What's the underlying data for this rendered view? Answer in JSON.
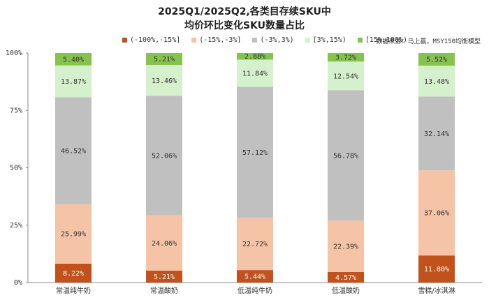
{
  "chart_data": {
    "type": "bar",
    "stacked": true,
    "title_lines": [
      "2025Q1/2025Q2,各类目存续SKU中",
      "均价环比变化SKU数量占比"
    ],
    "source": "数据来源：马上赢，MSY150均衡模型",
    "categories": [
      "常温纯牛奶",
      "常温酸奶",
      "低温纯牛奶",
      "低温酸奶",
      "雪糕/冰淇淋"
    ],
    "series": [
      {
        "name": "(-100%,-15%]",
        "color": "#c2521b",
        "label_color": "#ffffff",
        "values": [
          8.22,
          5.21,
          5.44,
          4.57,
          11.8
        ],
        "labels": [
          "8.22%",
          "5.21%",
          "5.44%",
          "4.57%",
          "11.80%"
        ]
      },
      {
        "name": "(-15%,-3%]",
        "color": "#f5c3a6",
        "label_color": "#333333",
        "values": [
          25.99,
          24.06,
          22.72,
          22.39,
          37.06
        ],
        "labels": [
          "25.99%",
          "24.06%",
          "22.72%",
          "22.39%",
          "37.06%"
        ]
      },
      {
        "name": "(-3%,3%)",
        "color": "#c0c0c0",
        "label_color": "#333333",
        "values": [
          46.52,
          52.06,
          57.12,
          56.78,
          32.14
        ],
        "labels": [
          "46.52%",
          "52.06%",
          "57.12%",
          "56.78%",
          "32.14%"
        ]
      },
      {
        "name": "[3%,15%)",
        "color": "#d4f0cc",
        "label_color": "#333333",
        "values": [
          13.87,
          13.46,
          11.84,
          12.54,
          13.48
        ],
        "labels": [
          "13.87%",
          "13.46%",
          "11.84%",
          "12.54%",
          "13.48%"
        ]
      },
      {
        "name": "[15%,100%)",
        "color": "#86c34c",
        "label_color": "#333333",
        "values": [
          5.4,
          5.21,
          2.88,
          3.72,
          5.52
        ],
        "labels": [
          "5.40%",
          "5.21%",
          "2.88%",
          "3.72%",
          "5.52%"
        ]
      }
    ],
    "ylim": [
      0,
      100
    ],
    "yticks": [
      0,
      25,
      50,
      75,
      100
    ],
    "ytick_labels": [
      "0%",
      "25%",
      "50%",
      "75%",
      "100%"
    ],
    "legend_position": "top",
    "grid": false
  }
}
